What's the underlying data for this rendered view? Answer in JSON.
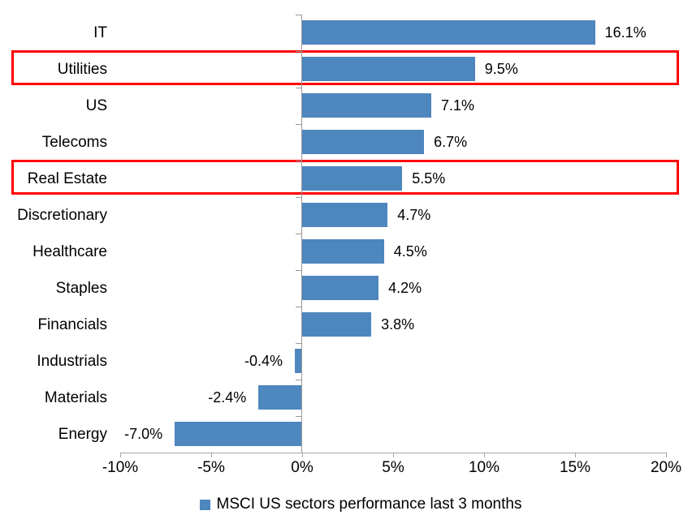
{
  "chart_data": {
    "type": "bar",
    "orientation": "horizontal",
    "title": "",
    "categories": [
      "IT",
      "Utilities",
      "US",
      "Telecoms",
      "Real Estate",
      "Discretionary",
      "Healthcare",
      "Staples",
      "Financials",
      "Industrials",
      "Materials",
      "Energy"
    ],
    "values": [
      16.1,
      9.5,
      7.1,
      6.7,
      5.5,
      4.7,
      4.5,
      4.2,
      3.8,
      -0.4,
      -2.4,
      -7.0
    ],
    "value_labels": [
      "16.1%",
      "9.5%",
      "7.1%",
      "6.7%",
      "5.5%",
      "4.7%",
      "4.5%",
      "4.2%",
      "3.8%",
      "-0.4%",
      "-2.4%",
      "-7.0%"
    ],
    "highlighted_categories": [
      "Utilities",
      "Real Estate"
    ],
    "x_axis": {
      "min": -10,
      "max": 20,
      "tick_values": [
        -10,
        -5,
        0,
        5,
        10,
        15,
        20
      ],
      "ticks": [
        "-10%",
        "-5%",
        "0%",
        "5%",
        "10%",
        "15%",
        "20%"
      ]
    },
    "grid": false,
    "bar_color": "#4e86be",
    "highlight_box_color": "#ff0000",
    "axis_color": "#999999",
    "legend": {
      "position": "bottom",
      "marker_color": "#4e86be",
      "label": "MSCI US sectors performance last 3 months"
    }
  }
}
